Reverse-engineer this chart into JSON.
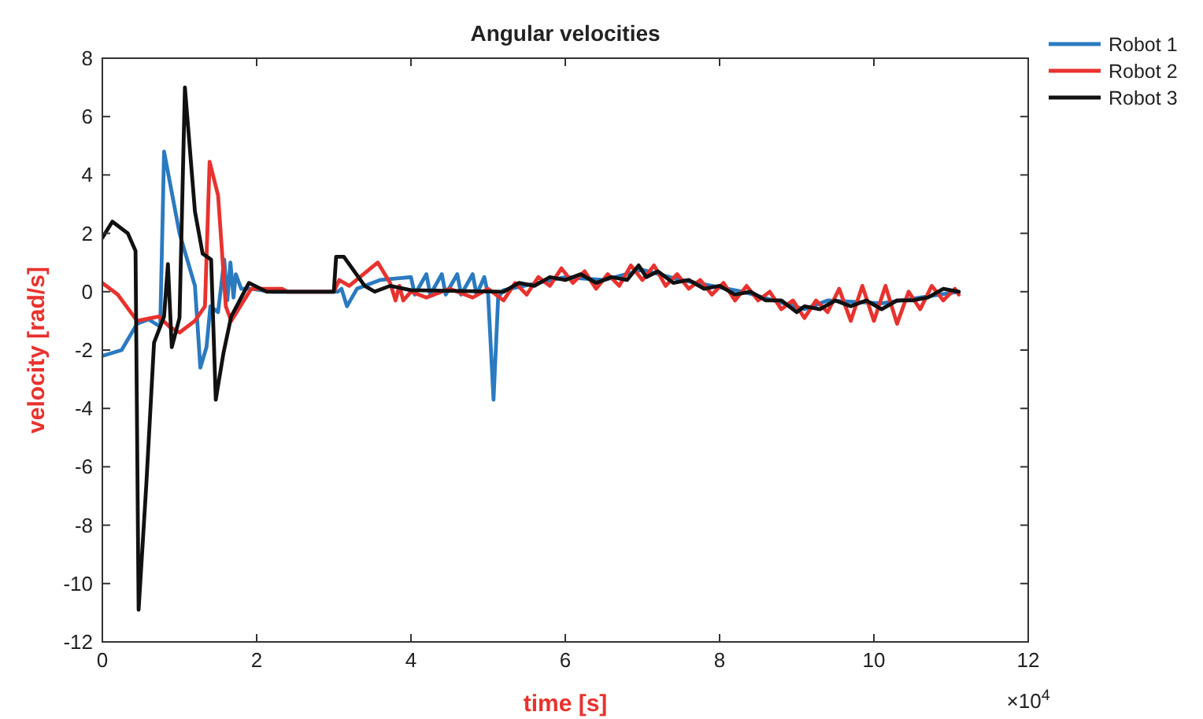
{
  "chart_data": {
    "type": "line",
    "title": "Angular velocities",
    "xlabel": "time [s]",
    "ylabel": "velocity [rad/s]",
    "annotations": [
      "×10$^{4}$"
    ],
    "xlim": [
      0,
      12
    ],
    "xticks": [
      0,
      2,
      4,
      6,
      8,
      10,
      12
    ],
    "ylim": [
      -12,
      8
    ],
    "yticks": [
      -12,
      -10,
      -8,
      -6,
      -4,
      -2,
      0,
      2,
      4,
      6,
      8
    ],
    "grid": false,
    "legend": "top right",
    "line_style": "solid",
    "marker": "none",
    "series": [
      {
        "name": "Robot 1",
        "color": "#2a7ac0",
        "x": [
          0,
          0.25,
          0.45,
          0.6,
          0.75,
          0.8,
          1.0,
          1.2,
          1.27,
          1.35,
          1.4,
          1.5,
          1.58,
          1.62,
          1.66,
          1.7,
          1.73,
          1.8,
          1.93,
          2.2,
          3.05,
          3.1,
          3.17,
          3.3,
          3.6,
          4.0,
          4.05,
          4.2,
          4.25,
          4.4,
          4.45,
          4.6,
          4.65,
          4.8,
          4.85,
          4.95,
          5.0,
          5.07,
          5.13,
          5.2,
          6.0,
          6.5,
          7.0,
          7.5,
          8.3,
          9.1,
          9.4,
          10.1,
          11.1
        ],
        "values": [
          -2.2,
          -2.0,
          -1.1,
          -0.95,
          -1.2,
          4.8,
          2.0,
          0.2,
          -2.6,
          -1.9,
          -0.5,
          -0.7,
          1.1,
          -0.3,
          1.0,
          -0.2,
          0.6,
          0.1,
          0.1,
          0,
          0,
          0.1,
          -0.5,
          0.1,
          0.4,
          0.5,
          -0.1,
          0.6,
          -0.1,
          0.6,
          -0.1,
          0.6,
          -0.1,
          0.6,
          -0.1,
          0.5,
          -0.1,
          -3.7,
          -0.2,
          0.05,
          0.5,
          0.4,
          0.75,
          0.4,
          0,
          -0.6,
          -0.3,
          -0.4,
          0
        ]
      },
      {
        "name": "Robot 2",
        "color": "#e8322e",
        "x": [
          0,
          0.2,
          0.45,
          0.73,
          0.87,
          1.0,
          1.2,
          1.33,
          1.39,
          1.5,
          1.6,
          1.67,
          1.93,
          2.33,
          2.4,
          3.0,
          3.07,
          3.2,
          3.57,
          3.73,
          3.8,
          3.85,
          3.9,
          4.0,
          4.2,
          4.5,
          4.8,
          5.0,
          5.2,
          5.35,
          5.5,
          5.65,
          5.8,
          5.95,
          6.1,
          6.25,
          6.4,
          6.55,
          6.7,
          6.85,
          7.0,
          7.15,
          7.3,
          7.45,
          7.6,
          7.75,
          7.9,
          8.05,
          8.2,
          8.35,
          8.5,
          8.65,
          8.8,
          8.95,
          9.1,
          9.25,
          9.4,
          9.55,
          9.7,
          9.85,
          10.0,
          10.15,
          10.3,
          10.45,
          10.6,
          10.75,
          10.9,
          11.05,
          11.1
        ],
        "values": [
          0.3,
          -0.1,
          -1.0,
          -0.85,
          -1.2,
          -1.4,
          -1.0,
          -0.5,
          4.45,
          3.3,
          -0.5,
          -1.0,
          0.1,
          0.1,
          0,
          0,
          0.4,
          0.2,
          1.0,
          0.3,
          -0.3,
          0.2,
          -0.3,
          0,
          -0.2,
          0.1,
          -0.2,
          0.1,
          -0.3,
          0.3,
          -0.1,
          0.5,
          0.2,
          0.8,
          0.3,
          0.7,
          0.1,
          0.6,
          0.2,
          0.9,
          0.4,
          0.9,
          0.2,
          0.6,
          0.1,
          0.4,
          -0.1,
          0.3,
          -0.3,
          0.2,
          -0.3,
          0,
          -0.6,
          -0.3,
          -0.9,
          -0.3,
          -0.7,
          0.1,
          -1.0,
          0.2,
          -1.0,
          0.2,
          -1.1,
          0,
          -0.6,
          0.2,
          -0.3,
          0.1,
          -0.1
        ]
      },
      {
        "name": "Robot 3",
        "color": "#111111",
        "x": [
          0,
          0.13,
          0.33,
          0.43,
          0.47,
          0.57,
          0.67,
          0.8,
          0.85,
          0.9,
          1.0,
          1.07,
          1.2,
          1.3,
          1.41,
          1.47,
          1.57,
          1.67,
          1.9,
          2.13,
          3.0,
          3.03,
          3.13,
          3.4,
          3.53,
          3.73,
          4.0,
          5.2,
          5.4,
          5.6,
          5.8,
          6.0,
          6.2,
          6.4,
          6.6,
          6.8,
          6.95,
          7.05,
          7.2,
          7.4,
          7.6,
          7.8,
          8.0,
          8.2,
          8.4,
          8.6,
          8.8,
          9.0,
          9.1,
          9.3,
          9.5,
          9.7,
          9.9,
          10.1,
          10.3,
          10.5,
          10.7,
          10.9,
          11.1
        ],
        "values": [
          1.85,
          2.4,
          2.0,
          1.4,
          -10.9,
          -6.6,
          -1.75,
          -0.85,
          0.95,
          -1.9,
          -0.9,
          7.0,
          2.75,
          1.3,
          1.1,
          -3.7,
          -2.1,
          -0.85,
          0.3,
          0,
          0,
          1.2,
          1.2,
          0.2,
          0,
          0.2,
          0.05,
          0,
          0.3,
          0.2,
          0.5,
          0.4,
          0.6,
          0.3,
          0.5,
          0.4,
          0.9,
          0.5,
          0.7,
          0.3,
          0.4,
          0.1,
          0.2,
          -0.1,
          0,
          -0.3,
          -0.3,
          -0.7,
          -0.5,
          -0.6,
          -0.3,
          -0.5,
          -0.3,
          -0.6,
          -0.3,
          -0.3,
          -0.2,
          0.1,
          0
        ]
      }
    ]
  }
}
